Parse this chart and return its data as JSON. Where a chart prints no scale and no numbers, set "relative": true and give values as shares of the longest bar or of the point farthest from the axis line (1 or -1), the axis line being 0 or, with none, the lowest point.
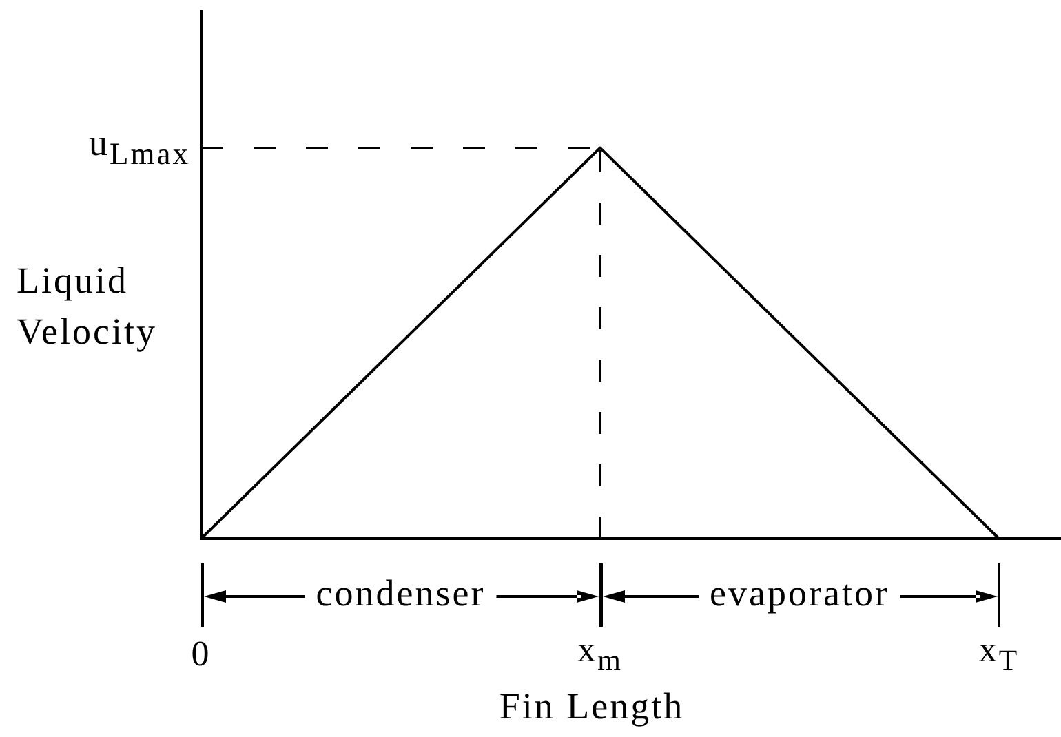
{
  "chart_data": {
    "type": "line",
    "xlabel": "Fin Length",
    "ylabel": "Liquid Velocity",
    "categories": [
      "0",
      "x$_{m}$",
      "x$_{T}$"
    ],
    "values": [
      0,
      1,
      0
    ],
    "color": "#000000",
    "relative": true,
    "marker": "none",
    "line_style": "solid",
    "ref_lines": [
      {
        "axis": "y",
        "value": 1,
        "label": "u$_{L}$$_{max}$",
        "line_style": "dashed"
      },
      {
        "axis": "x",
        "value": "x$_{m}$",
        "line_style": "dashed"
      }
    ],
    "annotations": [
      "condenser",
      "evaporator"
    ]
  }
}
